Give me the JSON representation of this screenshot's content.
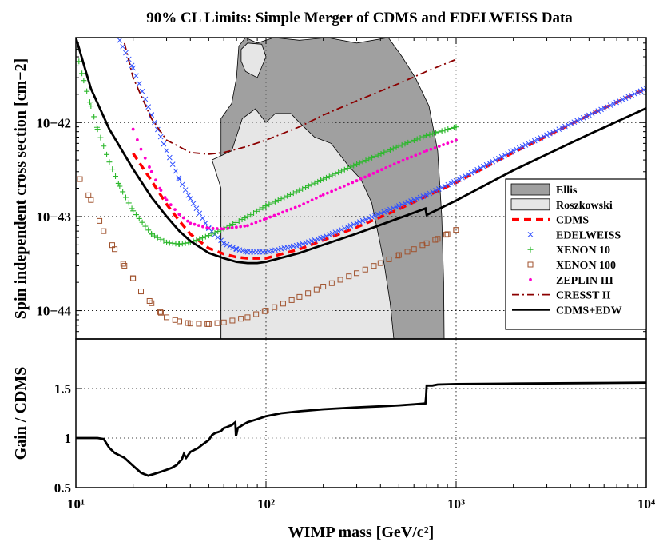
{
  "chart_data": [
    {
      "type": "line",
      "title": "90% CL Limits: Simple Merger of CDMS and EDELWEISS Data",
      "ylabel": "Spin independent cross section [cm−2]",
      "x_scale": "log",
      "y_scale": "log",
      "xlim": [
        10,
        10000
      ],
      "ylim": [
        5e-45,
        8e-42
      ],
      "grid": true,
      "legend_position": "right",
      "y_ticks": [
        {
          "value": 1e-44,
          "label": "10−44"
        },
        {
          "value": 1e-43,
          "label": "10−43"
        },
        {
          "value": 1e-42,
          "label": "10−42"
        }
      ],
      "regions": [
        {
          "name": "Ellis",
          "color": "#a0a0a0",
          "polygon": [
            [
              58,
              5e-45
            ],
            [
              58,
              1.1e-42
            ],
            [
              66,
              1.6e-42
            ],
            [
              70,
              3e-42
            ],
            [
              72,
              6.5e-42
            ],
            [
              78,
              8e-42
            ],
            [
              90,
              7e-42
            ],
            [
              110,
              8e-42
            ],
            [
              150,
              7.5e-42
            ],
            [
              210,
              8e-42
            ],
            [
              300,
              7e-42
            ],
            [
              440,
              8e-42
            ],
            [
              520,
              5e-42
            ],
            [
              610,
              3e-42
            ],
            [
              720,
              1.5e-42
            ],
            [
              800,
              5e-43
            ],
            [
              840,
              1e-43
            ],
            [
              860,
              2e-44
            ],
            [
              865,
              5e-45
            ]
          ]
        },
        {
          "name": "Roszkowski",
          "color": "#e6e6e6",
          "polygon": [
            [
              58,
              5e-45
            ],
            [
              58,
              2e-43
            ],
            [
              52,
              4e-43
            ],
            [
              66,
              5e-43
            ],
            [
              75,
              1.1e-42
            ],
            [
              88,
              1.4e-42
            ],
            [
              100,
              1e-42
            ],
            [
              112,
              1.25e-42
            ],
            [
              135,
              1.25e-42
            ],
            [
              150,
              1e-42
            ],
            [
              180,
              7e-43
            ],
            [
              220,
              6e-43
            ],
            [
              270,
              3.5e-43
            ],
            [
              315,
              2.5e-43
            ],
            [
              360,
              1.4e-43
            ],
            [
              400,
              5e-44
            ],
            [
              420,
              3e-44
            ],
            [
              450,
              1.2e-44
            ],
            [
              470,
              5e-45
            ]
          ]
        },
        {
          "name": "Roszkowski",
          "color": "#e6e6e6",
          "polygon": [
            [
              74,
              6e-42
            ],
            [
              80,
              7e-42
            ],
            [
              95,
              6.8e-42
            ],
            [
              100,
              5e-42
            ],
            [
              90,
              3e-42
            ],
            [
              78,
              3.5e-42
            ],
            [
              74,
              4.5e-42
            ]
          ]
        }
      ],
      "series": [
        {
          "name": "CDMS",
          "color": "#ff0000",
          "style": "dashed",
          "x": [
            20,
            25,
            30,
            35,
            40,
            50,
            60,
            70,
            80,
            90,
            100,
            150,
            200,
            300,
            500,
            700,
            1000,
            2000,
            5000,
            10000
          ],
          "y": [
            4.7e-43,
            2.4e-43,
            1.35e-43,
            9e-44,
            6.5e-44,
            4.6e-44,
            4e-44,
            3.7e-44,
            3.6e-44,
            3.6e-44,
            3.6e-44,
            4.5e-44,
            5.6e-44,
            7.7e-44,
            1.2e-43,
            1.65e-43,
            2.3e-43,
            4.8e-43,
            1.2e-42,
            2.3e-42
          ]
        },
        {
          "name": "EDELWEISS",
          "color": "#3050ff",
          "style": "x",
          "x": [
            17,
            20,
            25,
            30,
            35,
            40,
            50,
            60,
            70,
            80,
            100,
            150,
            200,
            300,
            500,
            700,
            1000,
            2000,
            5000,
            10000
          ],
          "y": [
            7.5e-42,
            3.8e-42,
            1.2e-42,
            5e-43,
            2.5e-43,
            1.55e-43,
            7.5e-44,
            5.2e-44,
            4.5e-44,
            4.2e-44,
            4.2e-44,
            5e-44,
            6e-44,
            8.5e-44,
            1.3e-43,
            1.7e-43,
            2.4e-43,
            5e-43,
            1.2e-42,
            2.3e-42
          ]
        },
        {
          "name": "XENON 10",
          "color": "#2db82d",
          "style": "+",
          "x": [
            10,
            11,
            12,
            13,
            15,
            17,
            20,
            25,
            30,
            35,
            40,
            50,
            60,
            80,
            100,
            150,
            200,
            300,
            500,
            700,
            1000
          ],
          "y": [
            6e-42,
            2.8e-42,
            1.5e-42,
            8.5e-43,
            3.8e-43,
            2.1e-43,
            1.15e-43,
            6.5e-44,
            5.3e-44,
            5.1e-44,
            5.3e-44,
            6.3e-44,
            7.4e-44,
            1e-43,
            1.3e-43,
            1.9e-43,
            2.5e-43,
            3.6e-43,
            5.6e-43,
            7.3e-43,
            9e-43
          ]
        },
        {
          "name": "XENON 100",
          "color": "#a0522d",
          "style": "square",
          "x": [
            10.5,
            12,
            14,
            16,
            18,
            20,
            22,
            25,
            28,
            30,
            35,
            40,
            50,
            60,
            80,
            100,
            150,
            200,
            300,
            400,
            500,
            600,
            700,
            800,
            900,
            1000
          ],
          "y": [
            2.5e-43,
            1.5e-43,
            7e-44,
            4.5e-44,
            3e-44,
            2.2e-44,
            1.6e-44,
            1.2e-44,
            9.5e-45,
            8.5e-45,
            7.7e-45,
            7.3e-45,
            7.2e-45,
            7.5e-45,
            8.5e-45,
            1e-44,
            1.4e-44,
            1.8e-44,
            2.5e-44,
            3.2e-44,
            3.9e-44,
            4.5e-44,
            5.2e-44,
            5.8e-44,
            6.5e-44,
            7.2e-44
          ]
        },
        {
          "name": "ZEPLIN III",
          "color": "#ff00cc",
          "style": "dot",
          "x": [
            20,
            22,
            25,
            28,
            30,
            35,
            40,
            50,
            60,
            80,
            100,
            150,
            200,
            300,
            500,
            700,
            1000
          ],
          "y": [
            8.5e-43,
            5.2e-43,
            3e-43,
            1.9e-43,
            1.5e-43,
            1.05e-43,
            8.5e-44,
            7.5e-44,
            7.4e-44,
            8e-44,
            9.5e-44,
            1.3e-43,
            1.7e-43,
            2.4e-43,
            3.8e-43,
            5e-43,
            6.5e-43
          ]
        },
        {
          "name": "CRESST II",
          "color": "#8b0000",
          "style": "dashdot",
          "x": [
            18,
            20,
            25,
            30,
            40,
            50,
            60,
            70,
            80,
            100,
            150,
            200,
            300,
            500,
            700,
            1000
          ],
          "y": [
            7e-42,
            3e-42,
            1.1e-42,
            6.5e-43,
            4.8e-43,
            4.6e-43,
            4.8e-43,
            5.2e-43,
            5.6e-43,
            6.5e-43,
            9e-43,
            1.2e-42,
            1.7e-42,
            2.6e-42,
            3.5e-42,
            4.7e-42
          ]
        },
        {
          "name": "CDMS+EDW",
          "color": "#000000",
          "style": "solid",
          "x": [
            10,
            12,
            15,
            20,
            25,
            30,
            35,
            40,
            50,
            60,
            70,
            80,
            90,
            100,
            150,
            200,
            300,
            500,
            690,
            700,
            1000,
            2000,
            5000,
            10000
          ],
          "y": [
            8e-42,
            2.3e-42,
            8.5e-43,
            3.2e-43,
            1.6e-43,
            1e-43,
            7e-44,
            5.5e-44,
            4.1e-44,
            3.6e-44,
            3.3e-44,
            3.2e-44,
            3.2e-44,
            3.3e-44,
            4.1e-44,
            5e-44,
            6.6e-44,
            9.6e-44,
            1.22e-43,
            1.04e-43,
            1.48e-43,
            3.1e-43,
            7.5e-43,
            1.42e-42
          ]
        }
      ]
    },
    {
      "type": "line",
      "xlabel": "WIMP mass [GeV/c²]",
      "ylabel": "Gain / CDMS",
      "x_scale": "log",
      "xlim": [
        10,
        10000
      ],
      "ylim": [
        0.5,
        2
      ],
      "grid": true,
      "x_ticks": [
        {
          "value": 10,
          "label": "10¹"
        },
        {
          "value": 100,
          "label": "10²"
        },
        {
          "value": 1000,
          "label": "10³"
        },
        {
          "value": 10000,
          "label": "10⁴"
        }
      ],
      "y_ticks": [
        {
          "value": 0.5,
          "label": "0.5"
        },
        {
          "value": 1,
          "label": "1"
        },
        {
          "value": 1.5,
          "label": "1.5"
        }
      ],
      "series": [
        {
          "color": "#000000",
          "style": "solid",
          "x": [
            10,
            12,
            13,
            14,
            15,
            16,
            18,
            20,
            22,
            24,
            26,
            28,
            30,
            32,
            34,
            35,
            36,
            37,
            38,
            40,
            42,
            44,
            46,
            50,
            52,
            54,
            56,
            58,
            60,
            62,
            64,
            66,
            68,
            69,
            69.5,
            70,
            71,
            75,
            80,
            90,
            100,
            120,
            150,
            200,
            300,
            400,
            500,
            600,
            690,
            695,
            700,
            750,
            800,
            1000,
            2000,
            5000,
            10000
          ],
          "y": [
            1,
            1,
            1,
            0.99,
            0.9,
            0.85,
            0.8,
            0.72,
            0.65,
            0.62,
            0.64,
            0.66,
            0.68,
            0.7,
            0.73,
            0.76,
            0.78,
            0.84,
            0.8,
            0.86,
            0.88,
            0.9,
            0.93,
            0.98,
            1.03,
            1.05,
            1.06,
            1.07,
            1.1,
            1.11,
            1.12,
            1.13,
            1.15,
            1.16,
            1.02,
            1.04,
            1.1,
            1.13,
            1.16,
            1.19,
            1.22,
            1.25,
            1.27,
            1.29,
            1.31,
            1.32,
            1.33,
            1.34,
            1.35,
            1.42,
            1.53,
            1.53,
            1.54,
            1.545,
            1.55,
            1.555,
            1.56
          ]
        }
      ]
    }
  ]
}
